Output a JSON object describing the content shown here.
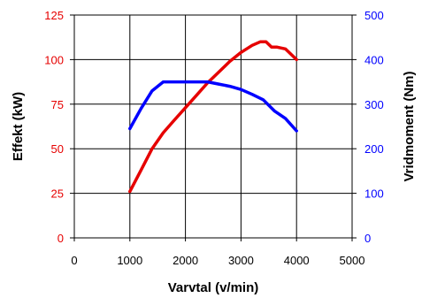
{
  "chart_data": {
    "type": "line",
    "xlabel": "Varvtal (v/min)",
    "ylabel_left": "Effekt (kW)",
    "ylabel_right": "Vridmoment (Nm)",
    "xlim": [
      0,
      5000
    ],
    "ylim_left": [
      0,
      125
    ],
    "ylim_right": [
      0,
      500
    ],
    "x_ticks": [
      "0",
      "1000",
      "2000",
      "3000",
      "4000",
      "5000"
    ],
    "y_ticks_left": [
      "0",
      "25",
      "50",
      "75",
      "100",
      "125"
    ],
    "y_ticks_right": [
      "0",
      "100",
      "200",
      "300",
      "400",
      "500"
    ],
    "grid": true,
    "series": [
      {
        "axis": "left",
        "color": "#e60000",
        "x": [
          1000,
          1200,
          1400,
          1600,
          1800,
          2000,
          2200,
          2400,
          2600,
          2800,
          3000,
          3200,
          3350,
          3450,
          3550,
          3650,
          3800,
          4000
        ],
        "values": [
          26,
          38,
          50,
          59,
          66,
          73,
          80,
          87,
          93,
          99,
          104,
          108,
          110,
          110,
          107,
          107,
          106,
          100
        ]
      },
      {
        "axis": "right",
        "color": "#0000ff",
        "x": [
          1000,
          1200,
          1400,
          1600,
          1800,
          2000,
          2200,
          2400,
          2600,
          2800,
          3000,
          3200,
          3400,
          3600,
          3800,
          4000
        ],
        "values": [
          245,
          290,
          330,
          350,
          350,
          350,
          350,
          350,
          345,
          340,
          333,
          322,
          310,
          285,
          268,
          240
        ]
      }
    ]
  }
}
